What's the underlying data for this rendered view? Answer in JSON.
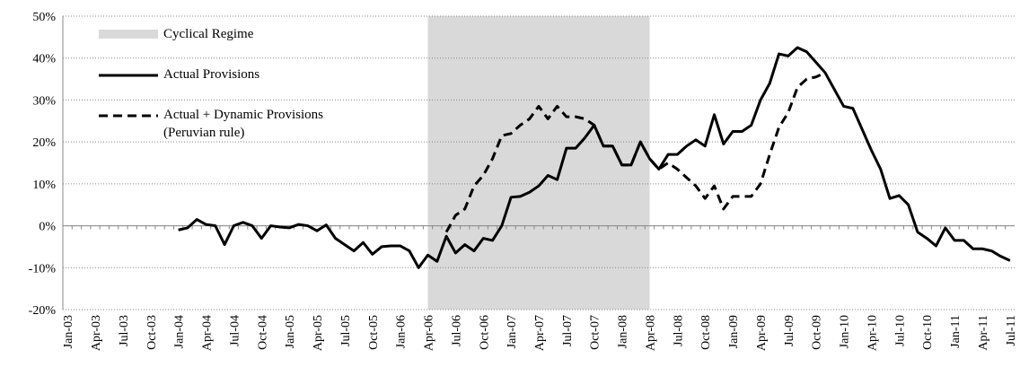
{
  "chart_data": {
    "type": "line",
    "categories": [
      "Jan-03",
      null,
      null,
      "Apr-03",
      null,
      null,
      "Jul-03",
      null,
      null,
      "Oct-03",
      null,
      null,
      "Jan-04",
      null,
      null,
      "Apr-04",
      null,
      null,
      "Jul-04",
      null,
      null,
      "Oct-04",
      null,
      null,
      "Jan-05",
      null,
      null,
      "Apr-05",
      null,
      null,
      "Jul-05",
      null,
      null,
      "Oct-05",
      null,
      null,
      "Jan-06",
      null,
      null,
      "Apr-06",
      null,
      null,
      "Jul-06",
      null,
      null,
      "Oct-06",
      null,
      null,
      "Jan-07",
      null,
      null,
      "Apr-07",
      null,
      null,
      "Jul-07",
      null,
      null,
      "Oct-07",
      null,
      null,
      "Jan-08",
      null,
      null,
      "Apr-08",
      null,
      null,
      "Jul-08",
      null,
      null,
      "Oct-08",
      null,
      null,
      "Jan-09",
      null,
      null,
      "Apr-09",
      null,
      null,
      "Jul-09",
      null,
      null,
      "Oct-09",
      null,
      null,
      "Jan-10",
      null,
      null,
      "Apr-10",
      null,
      null,
      "Jul-10",
      null,
      null,
      "Oct-10",
      null,
      null,
      "Jan-11",
      null,
      null,
      "Apr-11",
      null,
      null,
      "Jul-11"
    ],
    "bands": [
      {
        "name": "Cyclical Regime",
        "color": "#d9d9d9",
        "start": "Apr-06",
        "end": "Apr-08"
      }
    ],
    "series": [
      {
        "name": "Actual Provisions",
        "color": "#000000",
        "dash": false,
        "values": [
          null,
          null,
          null,
          null,
          null,
          null,
          null,
          null,
          null,
          null,
          null,
          null,
          -1,
          -0.5,
          1.5,
          0.3,
          0,
          -4.5,
          0,
          0.8,
          0,
          -3,
          0,
          -0.3,
          -0.5,
          0.3,
          0,
          -1.2,
          0.2,
          -3,
          -4.5,
          -6,
          -4,
          -6.8,
          -5,
          -4.8,
          -4.8,
          -6,
          -10,
          -7,
          -8.5,
          -2.5,
          -6.5,
          -4.5,
          -6,
          -3,
          -3.5,
          0,
          6.8,
          7,
          8,
          9.5,
          12,
          11,
          18.5,
          18.5,
          21,
          24,
          19,
          19,
          14.5,
          14.5,
          20,
          16,
          13.5,
          17,
          17,
          19,
          20.5,
          19,
          26.5,
          19.5,
          22.5,
          22.5,
          24,
          30,
          34,
          41,
          40.5,
          42.5,
          41.5,
          39,
          36.5,
          32.5,
          28.5,
          28,
          23,
          18,
          13.5,
          6.5,
          7.2,
          5,
          -1.5,
          -3,
          -4.8,
          -0.5,
          -3.5,
          -3.5,
          -5.5,
          -5.5,
          -6,
          -7.3,
          -8.3
        ]
      },
      {
        "name": "Actual + Dynamic Provisions (Peruvian rule)",
        "color": "#000000",
        "dash": true,
        "values": [
          null,
          null,
          null,
          null,
          null,
          null,
          null,
          null,
          null,
          null,
          null,
          null,
          null,
          null,
          null,
          null,
          null,
          null,
          null,
          null,
          null,
          null,
          null,
          null,
          null,
          null,
          null,
          null,
          null,
          null,
          null,
          null,
          null,
          null,
          null,
          null,
          null,
          null,
          null,
          null,
          null,
          -1.5,
          2.5,
          4,
          9.5,
          12,
          16,
          21.5,
          22,
          24,
          25.5,
          28.5,
          25.5,
          28.5,
          26,
          26,
          25.5,
          24,
          19,
          19,
          14.5,
          14.5,
          20,
          16,
          13.5,
          15,
          13.5,
          11.5,
          9.5,
          6.5,
          9.5,
          4,
          7,
          7,
          7,
          10,
          17,
          23.5,
          27,
          33,
          35,
          35.5,
          36.5,
          null,
          null,
          null,
          null,
          null,
          null,
          null,
          null,
          null,
          null,
          null,
          null,
          null,
          null,
          null,
          null,
          null,
          null,
          null,
          null
        ]
      }
    ],
    "ylim": [
      -20,
      50
    ],
    "yticks": [
      {
        "value": -20,
        "label": "-20%"
      },
      {
        "value": -10,
        "label": "-10%"
      },
      {
        "value": 0,
        "label": "0%"
      },
      {
        "value": 10,
        "label": "10%"
      },
      {
        "value": 20,
        "label": "20%"
      },
      {
        "value": 30,
        "label": "30%"
      },
      {
        "value": 40,
        "label": "40%"
      },
      {
        "value": 50,
        "label": "50%"
      }
    ],
    "grid": true
  }
}
